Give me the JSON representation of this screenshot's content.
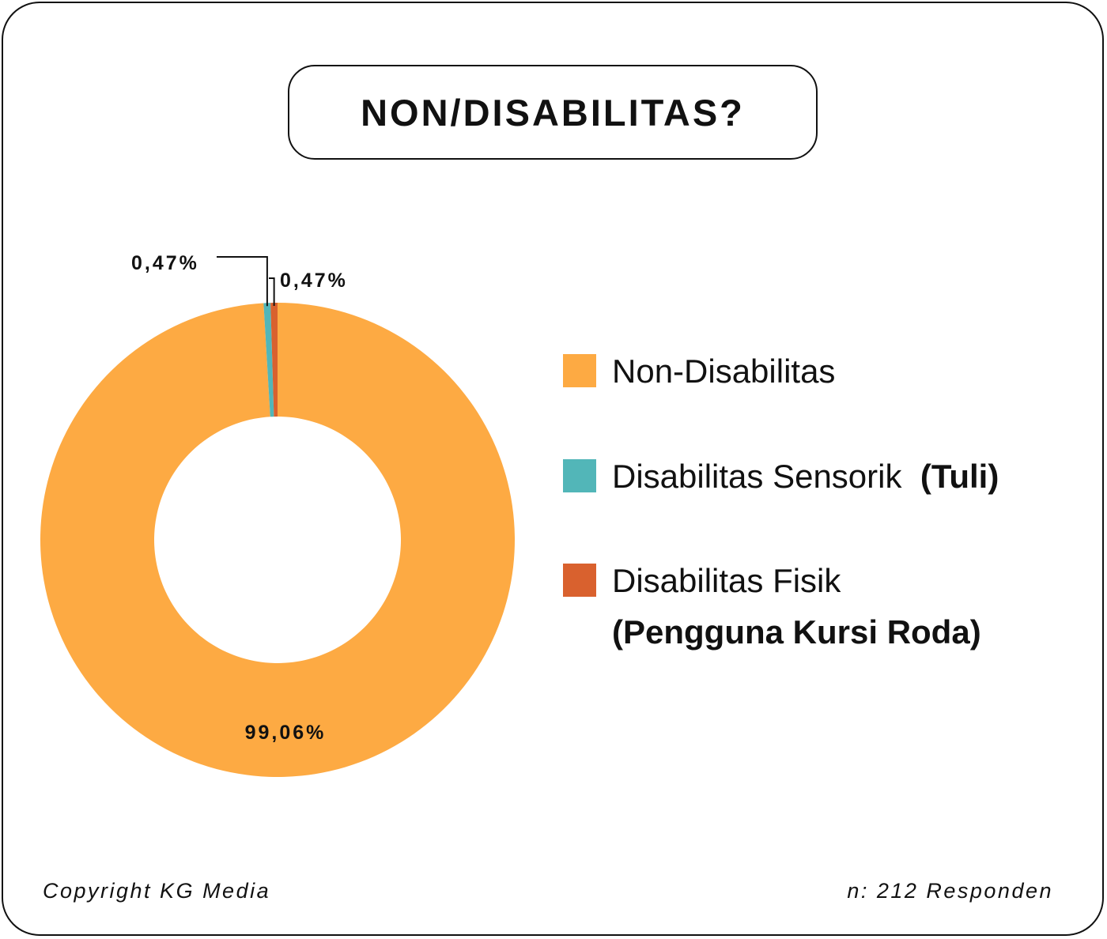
{
  "title": "NON/DISABILITAS?",
  "chart_data": {
    "type": "pie",
    "donut": true,
    "categories": [
      "Non-Disabilitas",
      "Disabilitas Sensorik (Tuli)",
      "Disabilitas Fisik (Pengguna Kursi Roda)"
    ],
    "values": [
      99.06,
      0.47,
      0.47
    ],
    "data_labels": [
      "99,06%",
      "0,47%",
      "0,47%"
    ],
    "colors": [
      "#FDAA43",
      "#52B6B8",
      "#D9612E"
    ],
    "legend_position": "right"
  },
  "legend": [
    {
      "label": "Non-Disabilitas",
      "bold": "",
      "sub": "",
      "color": "#FDAA43"
    },
    {
      "label": "Disabilitas Sensorik",
      "bold": "(Tuli)",
      "sub": "",
      "color": "#52B6B8"
    },
    {
      "label": "Disabilitas Fisik",
      "bold": "",
      "sub": "(Pengguna Kursi Roda)",
      "color": "#D9612E"
    }
  ],
  "footer": {
    "copyright": "Copyright KG Media",
    "respondents": "n: 212 Responden"
  }
}
